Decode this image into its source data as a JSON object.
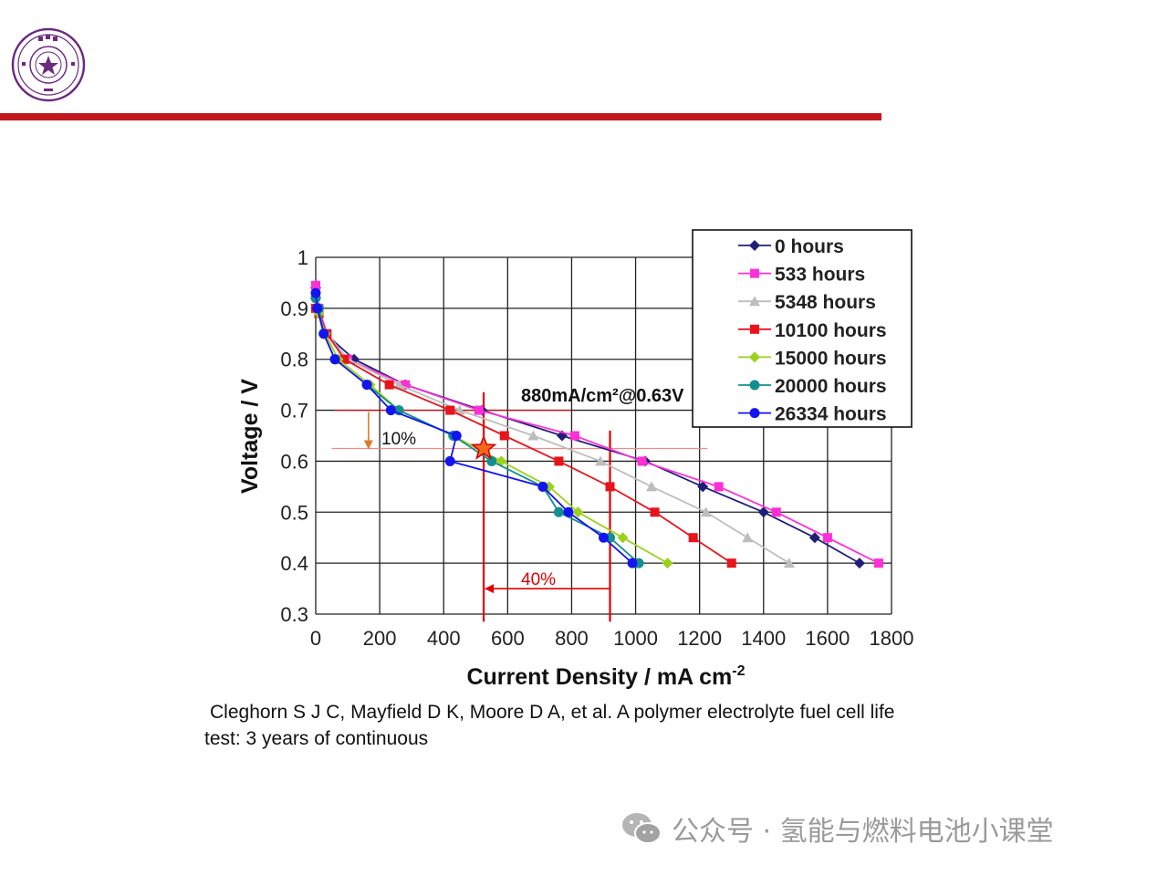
{
  "colors": {
    "brand_purple": "#6b2a7f",
    "header_bar": "#c0161d",
    "annotation_red": "#e00000",
    "annotation_orange": "#e07b2a"
  },
  "logo": {
    "icon": "university-seal-icon"
  },
  "annotations": {
    "operating_point": "880mA/cm²@0.63V",
    "voltage_drop": "10%",
    "current_drop": "40%"
  },
  "citation": {
    "line1": "Cleghorn S J C, Mayfield D K, Moore D A, et al. A polymer electrolyte fuel cell life",
    "line2": "test: 3 years of continuous"
  },
  "watermark": {
    "icon": "wechat-icon",
    "text": "公众号 · 氢能与燃料电池小课堂"
  },
  "chart_data": {
    "type": "line",
    "xlabel": "Current Density / mA cm",
    "xlabel_sup": "-2",
    "ylabel": "Voltage / V",
    "xlim": [
      0,
      1800
    ],
    "ylim": [
      0.3,
      1.0
    ],
    "xticks": [
      0,
      200,
      400,
      600,
      800,
      1000,
      1200,
      1400,
      1600,
      1800
    ],
    "yticks": [
      0.3,
      0.4,
      0.5,
      0.6,
      0.7,
      0.8,
      0.9,
      1
    ],
    "grid": true,
    "legend_position": "top-right",
    "series": [
      {
        "name": "0 hours",
        "color": "#1f1f7a",
        "marker": "diamond",
        "points": [
          [
            0,
            0.94
          ],
          [
            10,
            0.9
          ],
          [
            30,
            0.85
          ],
          [
            120,
            0.8
          ],
          [
            280,
            0.75
          ],
          [
            520,
            0.7
          ],
          [
            770,
            0.65
          ],
          [
            1030,
            0.6
          ],
          [
            1210,
            0.55
          ],
          [
            1400,
            0.5
          ],
          [
            1560,
            0.45
          ],
          [
            1700,
            0.4
          ]
        ]
      },
      {
        "name": "533 hours",
        "color": "#ff2fd6",
        "marker": "square",
        "points": [
          [
            0,
            0.945
          ],
          [
            10,
            0.9
          ],
          [
            35,
            0.85
          ],
          [
            100,
            0.8
          ],
          [
            280,
            0.75
          ],
          [
            510,
            0.7
          ],
          [
            810,
            0.65
          ],
          [
            1020,
            0.6
          ],
          [
            1260,
            0.55
          ],
          [
            1440,
            0.5
          ],
          [
            1600,
            0.45
          ],
          [
            1760,
            0.4
          ]
        ]
      },
      {
        "name": "5348 hours",
        "color": "#bdbdbd",
        "marker": "triangle",
        "points": [
          [
            0,
            0.93
          ],
          [
            10,
            0.89
          ],
          [
            35,
            0.85
          ],
          [
            100,
            0.8
          ],
          [
            260,
            0.75
          ],
          [
            450,
            0.7
          ],
          [
            680,
            0.65
          ],
          [
            890,
            0.6
          ],
          [
            1050,
            0.55
          ],
          [
            1220,
            0.5
          ],
          [
            1350,
            0.45
          ],
          [
            1480,
            0.4
          ]
        ]
      },
      {
        "name": "10100 hours",
        "color": "#e8141c",
        "marker": "square",
        "points": [
          [
            0,
            0.9
          ],
          [
            10,
            0.89
          ],
          [
            35,
            0.85
          ],
          [
            90,
            0.8
          ],
          [
            230,
            0.75
          ],
          [
            420,
            0.7
          ],
          [
            590,
            0.65
          ],
          [
            760,
            0.6
          ],
          [
            920,
            0.55
          ],
          [
            1060,
            0.5
          ],
          [
            1180,
            0.45
          ],
          [
            1300,
            0.4
          ]
        ]
      },
      {
        "name": "15000 hours",
        "color": "#9cd11b",
        "marker": "diamond",
        "points": [
          [
            0,
            0.92
          ],
          [
            10,
            0.89
          ],
          [
            30,
            0.85
          ],
          [
            70,
            0.8
          ],
          [
            170,
            0.75
          ],
          [
            260,
            0.7
          ],
          [
            430,
            0.65
          ],
          [
            580,
            0.6
          ],
          [
            730,
            0.55
          ],
          [
            820,
            0.5
          ],
          [
            960,
            0.45
          ],
          [
            1100,
            0.4
          ]
        ]
      },
      {
        "name": "20000 hours",
        "color": "#128f8f",
        "marker": "circle",
        "points": [
          [
            0,
            0.92
          ],
          [
            10,
            0.9
          ],
          [
            25,
            0.85
          ],
          [
            60,
            0.8
          ],
          [
            160,
            0.75
          ],
          [
            260,
            0.7
          ],
          [
            430,
            0.65
          ],
          [
            550,
            0.6
          ],
          [
            710,
            0.55
          ],
          [
            760,
            0.5
          ],
          [
            920,
            0.45
          ],
          [
            1010,
            0.4
          ]
        ]
      },
      {
        "name": "26334 hours",
        "color": "#1414f0",
        "marker": "circle",
        "points": [
          [
            0,
            0.93
          ],
          [
            5,
            0.9
          ],
          [
            25,
            0.85
          ],
          [
            60,
            0.8
          ],
          [
            160,
            0.75
          ],
          [
            235,
            0.7
          ],
          [
            440,
            0.65
          ],
          [
            420,
            0.6
          ],
          [
            710,
            0.55
          ],
          [
            790,
            0.5
          ],
          [
            900,
            0.45
          ],
          [
            990,
            0.4
          ]
        ]
      }
    ]
  }
}
